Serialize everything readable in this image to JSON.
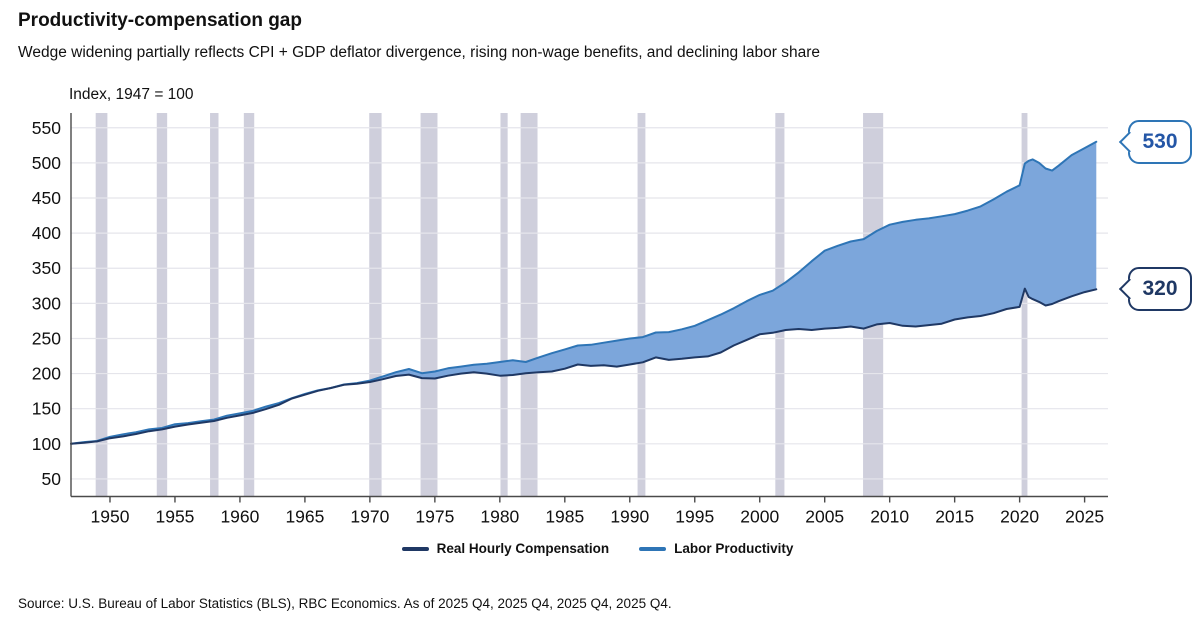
{
  "header": {
    "title": "Productivity-compensation gap",
    "subtitle": "Wedge widening partially reflects CPI + GDP deflator divergence, rising non-wage benefits, and declining labor share"
  },
  "footer": {
    "source": "Source: U.S. Bureau of Labor Statistics (BLS), RBC Economics. As of 2025 Q4, 2025 Q4, 2025 Q4, 2025 Q4."
  },
  "legend": {
    "items": [
      {
        "label": "Real Hourly Compensation",
        "color": "#1F3864"
      },
      {
        "label": "Labor Productivity",
        "color": "#2E75B6"
      }
    ]
  },
  "chart_data": {
    "type": "area",
    "title": "Productivity-compensation gap",
    "axis_note": "Index, 1947 = 100",
    "xlabel": "",
    "ylabel": "Index, 1947 = 100",
    "xlim": [
      1947,
      2026.8
    ],
    "ylim": [
      25,
      571
    ],
    "x_ticks": [
      1950,
      1955,
      1960,
      1965,
      1970,
      1975,
      1980,
      1985,
      1990,
      1995,
      2000,
      2005,
      2010,
      2015,
      2020,
      2025
    ],
    "y_ticks": [
      50,
      100,
      150,
      200,
      250,
      300,
      350,
      400,
      450,
      500,
      550
    ],
    "grid": "horizontal",
    "legend_position": "bottom-center",
    "fill_between_color": "#7CA6DB",
    "gridline_color": "#E5E5EB",
    "axis_color": "#4a4a4a",
    "recession_bands": {
      "color": "#CFCFDC",
      "ranges": [
        [
          1948.9,
          1949.8
        ],
        [
          1953.6,
          1954.4
        ],
        [
          1957.7,
          1958.35
        ],
        [
          1960.3,
          1961.1
        ],
        [
          1969.95,
          1970.9
        ],
        [
          1973.9,
          1975.2
        ],
        [
          1980.05,
          1980.6
        ],
        [
          1981.6,
          1982.9
        ],
        [
          1990.6,
          1991.2
        ],
        [
          2001.2,
          2001.9
        ],
        [
          2007.95,
          2009.5
        ],
        [
          2020.15,
          2020.6
        ]
      ]
    },
    "series": [
      {
        "name": "Labor Productivity",
        "color": "#2E75B6",
        "width": 2,
        "points": [
          [
            1947,
            100
          ],
          [
            1948,
            102.5
          ],
          [
            1949,
            104
          ],
          [
            1950,
            110
          ],
          [
            1951,
            113.5
          ],
          [
            1952,
            116.5
          ],
          [
            1953,
            120.5
          ],
          [
            1954,
            122.5
          ],
          [
            1955,
            128
          ],
          [
            1956,
            129.5
          ],
          [
            1957,
            132
          ],
          [
            1958,
            134.5
          ],
          [
            1959,
            140
          ],
          [
            1960,
            143.5
          ],
          [
            1961,
            147
          ],
          [
            1962,
            153
          ],
          [
            1963,
            158
          ],
          [
            1964,
            165
          ],
          [
            1965,
            171
          ],
          [
            1966,
            176
          ],
          [
            1967,
            179.5
          ],
          [
            1968,
            184.5
          ],
          [
            1969,
            186.5
          ],
          [
            1970,
            190
          ],
          [
            1971,
            196
          ],
          [
            1972,
            202
          ],
          [
            1973,
            206.5
          ],
          [
            1974,
            200.5
          ],
          [
            1975,
            203
          ],
          [
            1976,
            207.5
          ],
          [
            1977,
            210
          ],
          [
            1978,
            212.5
          ],
          [
            1979,
            214
          ],
          [
            1980,
            216.5
          ],
          [
            1981,
            219
          ],
          [
            1982,
            216.5
          ],
          [
            1983,
            223
          ],
          [
            1984,
            229
          ],
          [
            1985,
            234.5
          ],
          [
            1986,
            240
          ],
          [
            1987,
            241
          ],
          [
            1988,
            244
          ],
          [
            1989,
            247
          ],
          [
            1990,
            250
          ],
          [
            1991,
            252
          ],
          [
            1992,
            258.5
          ],
          [
            1993,
            259
          ],
          [
            1994,
            263
          ],
          [
            1995,
            268
          ],
          [
            1996,
            276
          ],
          [
            1997,
            284
          ],
          [
            1998,
            293
          ],
          [
            1999,
            303
          ],
          [
            2000,
            312
          ],
          [
            2001,
            318
          ],
          [
            2002,
            330
          ],
          [
            2003,
            344
          ],
          [
            2004,
            360
          ],
          [
            2005,
            375
          ],
          [
            2006,
            382
          ],
          [
            2007,
            388
          ],
          [
            2008,
            391.5
          ],
          [
            2009,
            403
          ],
          [
            2010,
            412
          ],
          [
            2011,
            416
          ],
          [
            2012,
            419
          ],
          [
            2013,
            421
          ],
          [
            2014,
            424
          ],
          [
            2015,
            427
          ],
          [
            2016,
            432
          ],
          [
            2017,
            438
          ],
          [
            2018,
            448
          ],
          [
            2019,
            459
          ],
          [
            2020,
            468
          ],
          [
            2020.4,
            499
          ],
          [
            2020.7,
            503
          ],
          [
            2021,
            505
          ],
          [
            2021.5,
            500
          ],
          [
            2022,
            492
          ],
          [
            2022.5,
            489
          ],
          [
            2023,
            496
          ],
          [
            2024,
            511
          ],
          [
            2025,
            521
          ],
          [
            2025.9,
            530
          ]
        ]
      },
      {
        "name": "Real Hourly Compensation",
        "color": "#1F3864",
        "width": 2,
        "points": [
          [
            1947,
            100
          ],
          [
            1948,
            101.5
          ],
          [
            1949,
            103.5
          ],
          [
            1950,
            108
          ],
          [
            1951,
            110.5
          ],
          [
            1952,
            114
          ],
          [
            1953,
            118
          ],
          [
            1954,
            120.5
          ],
          [
            1955,
            124.5
          ],
          [
            1956,
            127.5
          ],
          [
            1957,
            130
          ],
          [
            1958,
            132.5
          ],
          [
            1959,
            137
          ],
          [
            1960,
            140.5
          ],
          [
            1961,
            144
          ],
          [
            1962,
            149.5
          ],
          [
            1963,
            155.5
          ],
          [
            1964,
            164.5
          ],
          [
            1965,
            170
          ],
          [
            1966,
            175.5
          ],
          [
            1967,
            179.5
          ],
          [
            1968,
            184
          ],
          [
            1969,
            185.5
          ],
          [
            1970,
            188
          ],
          [
            1971,
            192
          ],
          [
            1972,
            196.5
          ],
          [
            1973,
            198.5
          ],
          [
            1974,
            193.5
          ],
          [
            1975,
            193
          ],
          [
            1976,
            197
          ],
          [
            1977,
            200
          ],
          [
            1978,
            202
          ],
          [
            1979,
            200
          ],
          [
            1980,
            197
          ],
          [
            1981,
            198
          ],
          [
            1982,
            200.5
          ],
          [
            1983,
            202
          ],
          [
            1984,
            203
          ],
          [
            1985,
            207
          ],
          [
            1986,
            213
          ],
          [
            1987,
            211
          ],
          [
            1988,
            212
          ],
          [
            1989,
            210
          ],
          [
            1990,
            213
          ],
          [
            1991,
            216
          ],
          [
            1992,
            223
          ],
          [
            1993,
            219.5
          ],
          [
            1994,
            221
          ],
          [
            1995,
            223
          ],
          [
            1996,
            224.5
          ],
          [
            1997,
            230
          ],
          [
            1998,
            240
          ],
          [
            1999,
            248
          ],
          [
            2000,
            256
          ],
          [
            2001,
            258
          ],
          [
            2002,
            262
          ],
          [
            2003,
            263.5
          ],
          [
            2004,
            262
          ],
          [
            2005,
            264
          ],
          [
            2006,
            265
          ],
          [
            2007,
            267
          ],
          [
            2008,
            264
          ],
          [
            2009,
            270
          ],
          [
            2010,
            272
          ],
          [
            2011,
            268
          ],
          [
            2012,
            267
          ],
          [
            2013,
            269
          ],
          [
            2014,
            271
          ],
          [
            2015,
            277
          ],
          [
            2016,
            280
          ],
          [
            2017,
            282
          ],
          [
            2018,
            286
          ],
          [
            2019,
            292
          ],
          [
            2020,
            295
          ],
          [
            2020.4,
            321
          ],
          [
            2020.7,
            309
          ],
          [
            2021,
            306
          ],
          [
            2021.5,
            302
          ],
          [
            2022,
            297
          ],
          [
            2022.5,
            299
          ],
          [
            2023,
            303
          ],
          [
            2024,
            310
          ],
          [
            2025,
            316
          ],
          [
            2025.9,
            320
          ]
        ]
      }
    ],
    "callouts": [
      {
        "label": "530",
        "value": 530,
        "border_color": "#2E75B6",
        "text_color": "#2456A6"
      },
      {
        "label": "320",
        "value": 320,
        "border_color": "#1F3864",
        "text_color": "#1F3864"
      }
    ]
  }
}
